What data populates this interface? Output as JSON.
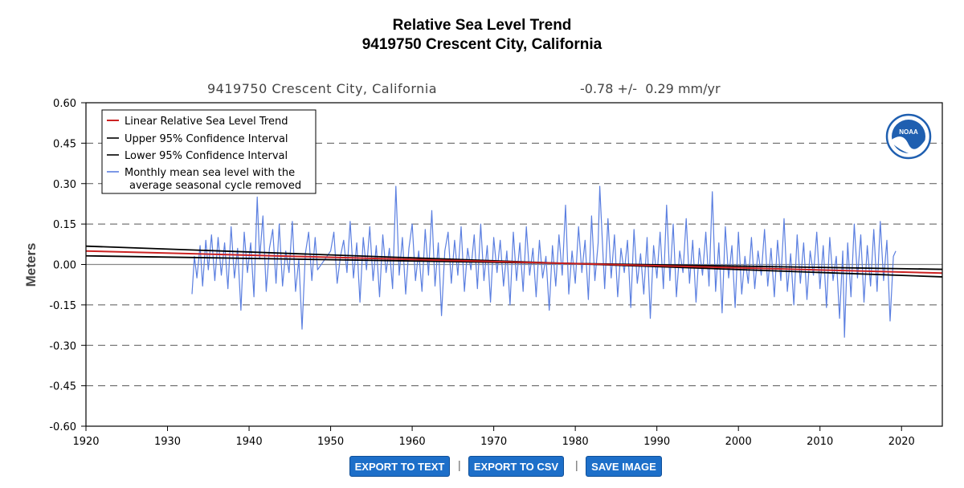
{
  "page": {
    "title_line1": "Relative Sea Level Trend",
    "title_line2": "9419750 Crescent City, California"
  },
  "chart_data": {
    "type": "line",
    "station": "9419750 Crescent City, California",
    "trend_label": "-0.78 +/-  0.29 mm/yr",
    "ylabel": "Meters",
    "xlim": [
      1920,
      2025
    ],
    "ylim": [
      -0.6,
      0.6
    ],
    "x_ticks": [
      1920,
      1930,
      1940,
      1950,
      1960,
      1970,
      1980,
      1990,
      2000,
      2010,
      2020
    ],
    "y_ticks": [
      0.6,
      0.45,
      0.3,
      0.15,
      0.0,
      -0.15,
      -0.3,
      -0.45,
      -0.6
    ],
    "y_tick_labels": [
      "0.60",
      "0.45",
      "0.30",
      "0.15",
      "0.00",
      "-0.15",
      "-0.30",
      "-0.45",
      "-0.60"
    ],
    "grid": "dashed horizontal",
    "legend": [
      {
        "label": "Linear Relative Sea Level Trend",
        "color": "#cc2222"
      },
      {
        "label": "Upper 95% Confidence Interval",
        "color": "#000000"
      },
      {
        "label": "Lower 95% Confidence Interval",
        "color": "#000000"
      },
      {
        "label": "Monthly mean sea level with the",
        "label2": "average seasonal cycle removed",
        "color": "#5b7fe0"
      }
    ],
    "logo_text": "NOAA",
    "trend_line": {
      "x": [
        1920,
        2025
      ],
      "y": [
        0.05,
        -0.032
      ]
    },
    "upper_ci": {
      "x": [
        1920,
        2025
      ],
      "y": [
        0.068,
        -0.046
      ]
    },
    "lower_ci": {
      "x": [
        1920,
        2025
      ],
      "y": [
        0.032,
        -0.018
      ]
    },
    "monthly_series": {
      "name": "Monthly mean sea level",
      "color": "#5b7fe0",
      "x": [
        1933.0,
        1933.3,
        1933.6,
        1934.0,
        1934.3,
        1934.7,
        1935.0,
        1935.4,
        1935.8,
        1936.2,
        1936.6,
        1937.0,
        1937.4,
        1937.8,
        1938.2,
        1938.6,
        1939.0,
        1939.4,
        1939.8,
        1940.2,
        1940.6,
        1941.0,
        1941.3,
        1941.7,
        1942.1,
        1942.5,
        1942.9,
        1943.3,
        1943.7,
        1944.1,
        1944.5,
        1944.9,
        1945.3,
        1945.7,
        1946.1,
        1946.5,
        1946.9,
        1947.3,
        1947.7,
        1948.1,
        1948.4,
        1950.0,
        1950.4,
        1950.8,
        1951.2,
        1951.6,
        1952.0,
        1952.4,
        1952.8,
        1953.2,
        1953.6,
        1954.0,
        1954.4,
        1954.8,
        1955.2,
        1955.6,
        1956.0,
        1956.4,
        1956.8,
        1957.2,
        1957.6,
        1958.0,
        1958.4,
        1958.8,
        1959.2,
        1959.6,
        1960.0,
        1960.4,
        1960.8,
        1961.2,
        1961.6,
        1962.0,
        1962.4,
        1962.8,
        1963.2,
        1963.6,
        1964.0,
        1964.4,
        1964.8,
        1965.2,
        1965.6,
        1966.0,
        1966.4,
        1966.8,
        1967.2,
        1967.6,
        1968.0,
        1968.4,
        1968.8,
        1969.2,
        1969.6,
        1970.0,
        1970.4,
        1970.8,
        1971.2,
        1971.6,
        1972.0,
        1972.4,
        1972.8,
        1973.2,
        1973.6,
        1974.0,
        1974.4,
        1974.8,
        1975.2,
        1975.6,
        1976.0,
        1976.4,
        1976.8,
        1977.2,
        1977.6,
        1978.0,
        1978.4,
        1978.8,
        1979.2,
        1979.6,
        1980.0,
        1980.4,
        1980.8,
        1981.2,
        1981.6,
        1982.0,
        1982.4,
        1982.8,
        1983.0,
        1983.3,
        1983.6,
        1984.0,
        1984.4,
        1984.8,
        1985.2,
        1985.6,
        1986.0,
        1986.4,
        1986.8,
        1987.2,
        1987.6,
        1988.0,
        1988.4,
        1988.8,
        1989.2,
        1989.6,
        1990.0,
        1990.4,
        1990.8,
        1991.2,
        1991.6,
        1992.0,
        1992.4,
        1992.8,
        1993.2,
        1993.6,
        1994.0,
        1994.4,
        1994.8,
        1995.2,
        1995.6,
        1996.0,
        1996.4,
        1996.8,
        1997.2,
        1997.6,
        1998.0,
        1998.4,
        1998.8,
        1999.2,
        1999.6,
        2000.0,
        2000.4,
        2000.8,
        2001.2,
        2001.6,
        2002.0,
        2002.4,
        2002.8,
        2003.2,
        2003.6,
        2004.0,
        2004.4,
        2004.8,
        2005.2,
        2005.6,
        2006.0,
        2006.4,
        2006.8,
        2007.2,
        2007.6,
        2008.0,
        2008.4,
        2008.8,
        2009.2,
        2009.6,
        2010.0,
        2010.4,
        2010.8,
        2011.2,
        2011.6,
        2012.0,
        2012.4,
        2012.8,
        2013.0,
        2013.4,
        2013.8,
        2014.2,
        2014.6,
        2015.0,
        2015.4,
        2015.8,
        2016.2,
        2016.6,
        2017.0,
        2017.4,
        2017.8,
        2018.2,
        2018.6,
        2019.0,
        2019.3
      ],
      "y": [
        -0.11,
        0.03,
        -0.05,
        0.07,
        -0.08,
        0.09,
        -0.02,
        0.11,
        -0.06,
        0.1,
        -0.04,
        0.08,
        -0.09,
        0.14,
        -0.05,
        0.06,
        -0.17,
        0.12,
        -0.03,
        0.08,
        -0.12,
        0.25,
        0.02,
        0.18,
        -0.1,
        0.06,
        0.13,
        -0.07,
        0.15,
        -0.08,
        0.05,
        -0.03,
        0.16,
        -0.1,
        0.02,
        -0.24,
        0.04,
        0.12,
        -0.06,
        0.1,
        -0.02,
        0.05,
        0.12,
        -0.07,
        0.03,
        0.09,
        -0.03,
        0.16,
        -0.05,
        0.08,
        -0.14,
        0.1,
        -0.02,
        0.14,
        -0.06,
        0.07,
        -0.12,
        0.11,
        -0.03,
        0.06,
        -0.09,
        0.29,
        -0.04,
        0.1,
        -0.11,
        0.06,
        0.15,
        -0.06,
        0.05,
        -0.1,
        0.13,
        -0.04,
        0.2,
        -0.08,
        0.08,
        -0.19,
        0.05,
        0.12,
        -0.07,
        0.09,
        -0.04,
        0.14,
        -0.1,
        0.06,
        -0.02,
        0.11,
        -0.09,
        0.15,
        -0.06,
        0.07,
        -0.14,
        0.1,
        -0.03,
        0.09,
        -0.08,
        0.05,
        -0.15,
        0.12,
        -0.06,
        0.08,
        -0.1,
        0.14,
        -0.04,
        0.06,
        -0.12,
        0.09,
        -0.05,
        0.03,
        -0.17,
        0.07,
        -0.08,
        0.11,
        -0.04,
        0.22,
        -0.11,
        0.05,
        -0.07,
        0.14,
        -0.03,
        0.09,
        -0.13,
        0.18,
        -0.06,
        0.08,
        0.29,
        0.1,
        -0.09,
        0.17,
        -0.05,
        0.11,
        -0.12,
        0.06,
        -0.03,
        0.09,
        -0.16,
        0.13,
        -0.07,
        0.04,
        -0.11,
        0.1,
        -0.2,
        0.07,
        -0.05,
        0.12,
        -0.09,
        0.22,
        -0.06,
        0.15,
        -0.12,
        0.05,
        -0.03,
        0.17,
        -0.07,
        0.09,
        -0.14,
        0.06,
        -0.04,
        0.12,
        -0.08,
        0.27,
        -0.1,
        0.08,
        -0.18,
        0.14,
        -0.05,
        0.07,
        -0.16,
        0.12,
        -0.11,
        0.03,
        -0.07,
        0.1,
        -0.09,
        0.05,
        -0.04,
        0.13,
        -0.08,
        0.06,
        -0.12,
        0.09,
        -0.06,
        0.17,
        -0.1,
        0.04,
        -0.15,
        0.11,
        -0.07,
        0.08,
        -0.13,
        0.05,
        -0.04,
        0.12,
        -0.09,
        0.07,
        -0.16,
        0.1,
        -0.06,
        0.03,
        -0.2,
        0.05,
        -0.27,
        0.08,
        -0.12,
        0.15,
        -0.05,
        0.11,
        -0.14,
        0.07,
        -0.08,
        0.13,
        -0.1,
        0.16,
        -0.06,
        0.09,
        -0.21,
        0.03,
        0.05
      ]
    }
  },
  "buttons": {
    "export_text": "EXPORT TO TEXT",
    "export_csv": "EXPORT TO CSV",
    "save_image": "SAVE IMAGE",
    "separator": "|"
  }
}
